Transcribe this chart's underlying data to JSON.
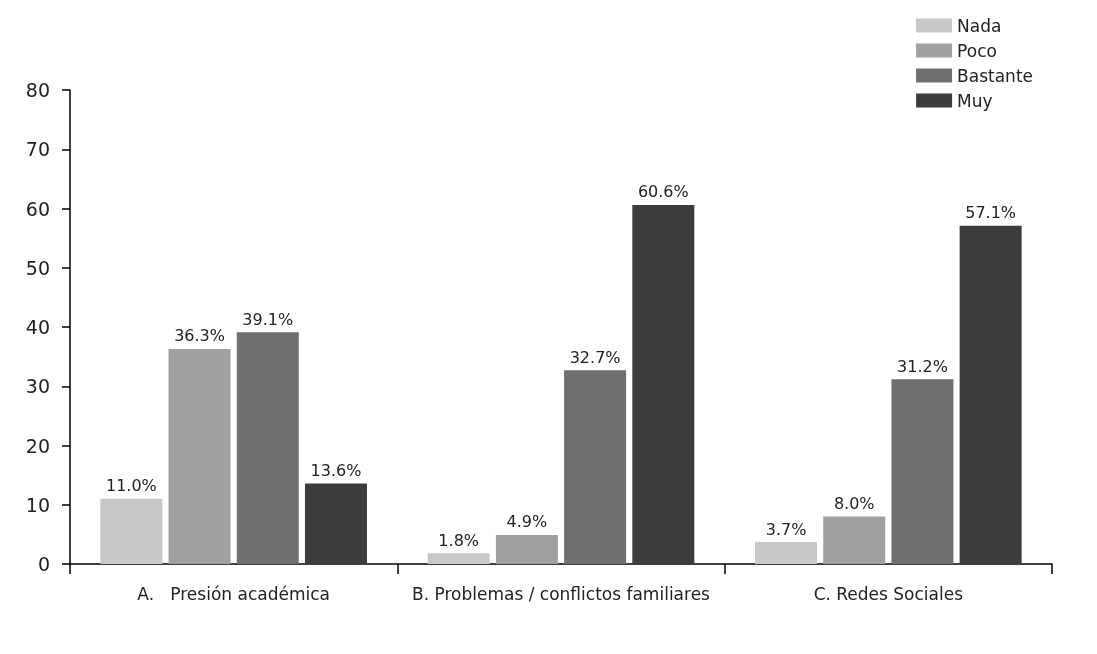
{
  "chart_data": {
    "type": "bar",
    "categories": [
      "A.   Presión académica",
      "B. Problemas / conflictos familiares",
      "C. Redes Sociales"
    ],
    "series": [
      {
        "name": "Nada",
        "color": "#c8c8c8",
        "values": [
          11.0,
          1.8,
          3.7
        ],
        "value_labels": [
          "11.0%",
          "1.8%",
          "3.7%"
        ]
      },
      {
        "name": "Poco",
        "color": "#a0a0a0",
        "values": [
          36.3,
          4.9,
          8.0
        ],
        "value_labels": [
          "36.3%",
          "4.9%",
          "8.0%"
        ]
      },
      {
        "name": "Bastante",
        "color": "#6f6f6f",
        "values": [
          39.1,
          32.7,
          31.2
        ],
        "value_labels": [
          "39.1%",
          "32.7%",
          "31.2%"
        ]
      },
      {
        "name": "Muy",
        "color": "#3c3c3c",
        "values": [
          13.6,
          60.6,
          57.1
        ],
        "value_labels": [
          "13.6%",
          "60.6%",
          "57.1%"
        ]
      }
    ],
    "ylim": [
      0,
      80
    ],
    "yticks": [
      0,
      10,
      20,
      30,
      40,
      50,
      60,
      70,
      80
    ],
    "grid": false,
    "legend": "top right"
  }
}
